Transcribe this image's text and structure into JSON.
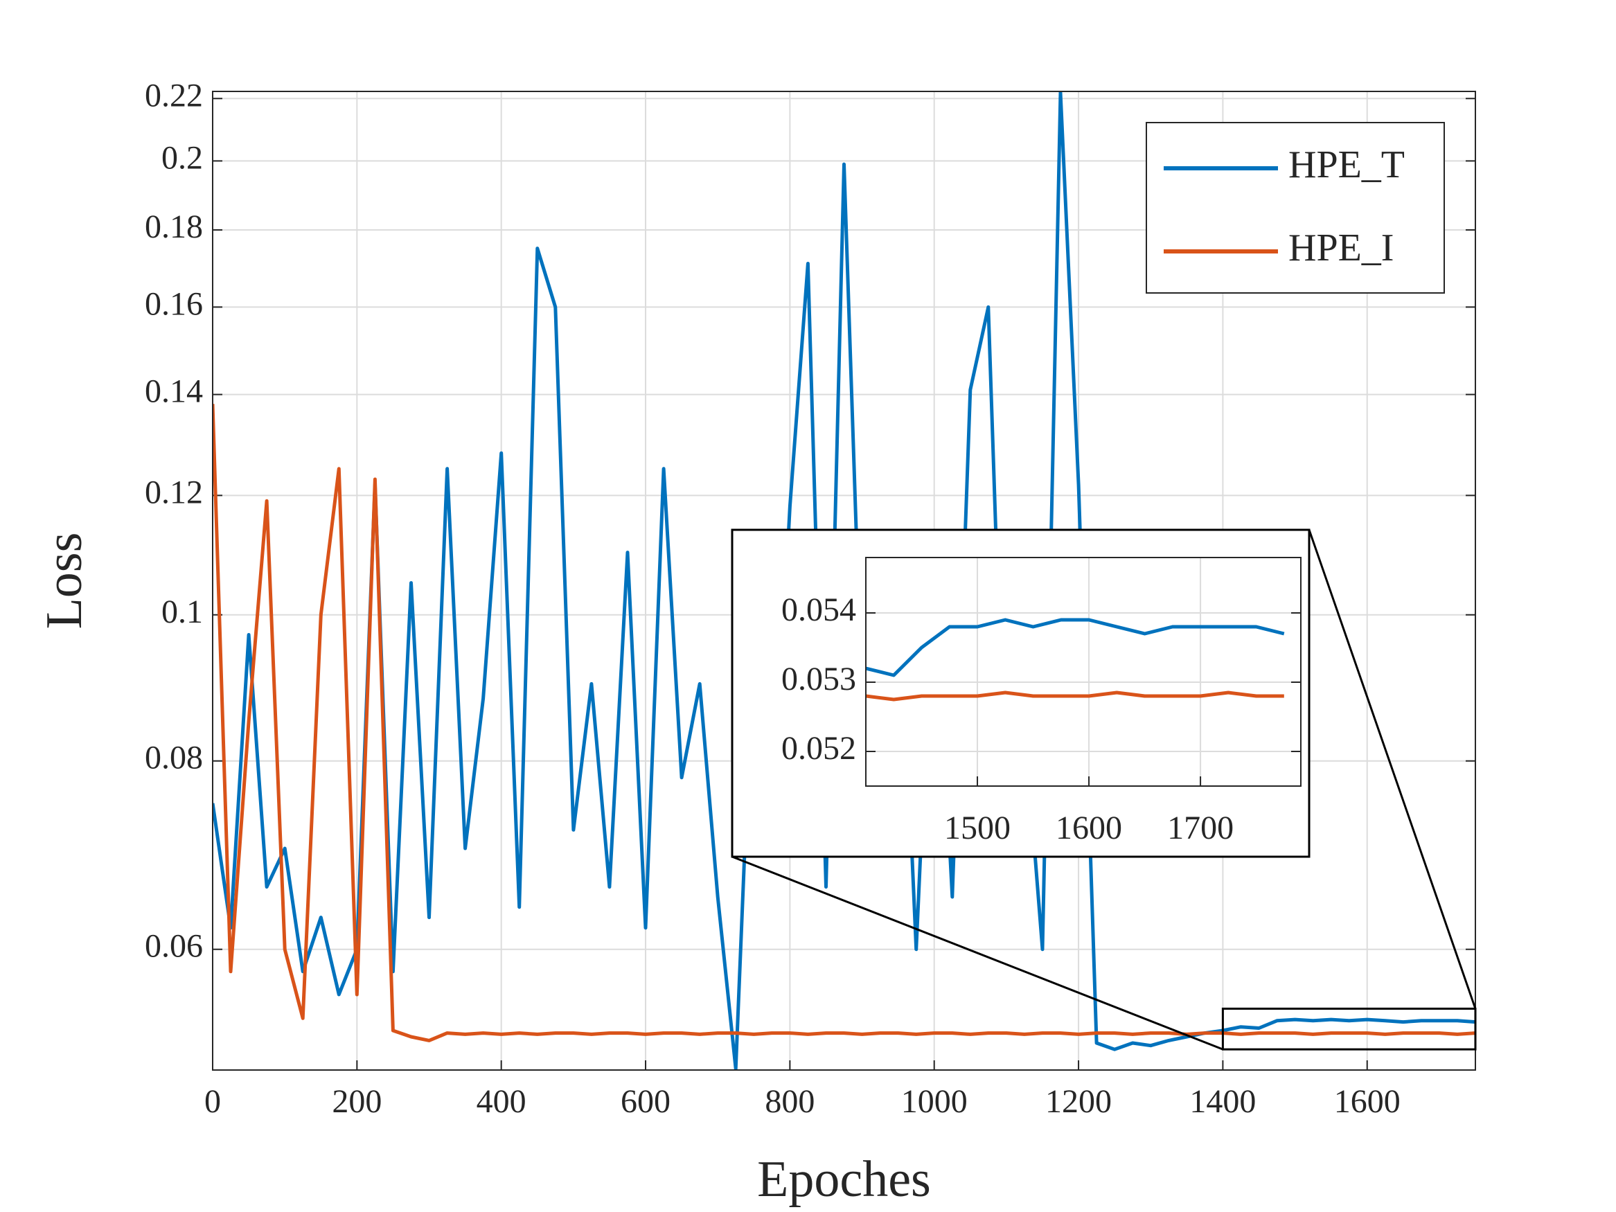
{
  "chart_data": [
    {
      "type": "line",
      "xlabel": "Epoches",
      "ylabel": "Loss",
      "yscale": "log",
      "grid": true,
      "legend": "upper right",
      "xlim": [
        0,
        1750
      ],
      "ylim": [
        0.0499,
        0.2224
      ],
      "xticks": [
        0,
        200,
        400,
        600,
        800,
        1000,
        1200,
        1400,
        1600
      ],
      "yticks": [
        0.06,
        0.08,
        0.1,
        0.12,
        0.14,
        0.16,
        0.18,
        0.2,
        0.22
      ],
      "x": [
        0,
        25,
        50,
        75,
        100,
        125,
        150,
        175,
        200,
        225,
        250,
        275,
        300,
        325,
        350,
        375,
        400,
        425,
        450,
        475,
        500,
        525,
        550,
        575,
        600,
        625,
        650,
        675,
        700,
        725,
        750,
        775,
        800,
        825,
        850,
        875,
        900,
        925,
        950,
        975,
        1000,
        1025,
        1050,
        1075,
        1100,
        1125,
        1150,
        1175,
        1200,
        1225,
        1250,
        1275,
        1300,
        1325,
        1350,
        1375,
        1400,
        1425,
        1450,
        1475,
        1500,
        1525,
        1550,
        1575,
        1600,
        1625,
        1650,
        1675,
        1700,
        1725,
        1750
      ],
      "series": [
        {
          "name": "HPE_T",
          "color": "#0072bd",
          "values": [
            0.075,
            0.062,
            0.097,
            0.066,
            0.07,
            0.058,
            0.063,
            0.056,
            0.06,
            0.122,
            0.058,
            0.105,
            0.063,
            0.125,
            0.07,
            0.088,
            0.128,
            0.064,
            0.175,
            0.16,
            0.072,
            0.09,
            0.066,
            0.11,
            0.062,
            0.125,
            0.078,
            0.09,
            0.065,
            0.05,
            0.098,
            0.07,
            0.118,
            0.171,
            0.066,
            0.199,
            0.087,
            0.075,
            0.112,
            0.06,
            0.11,
            0.065,
            0.141,
            0.16,
            0.07,
            0.085,
            0.06,
            0.222,
            0.122,
            0.052,
            0.0515,
            0.052,
            0.0518,
            0.0522,
            0.0525,
            0.0528,
            0.053,
            0.0533,
            0.0532,
            0.0538,
            0.0539,
            0.0538,
            0.0539,
            0.0538,
            0.0539,
            0.0538,
            0.0537,
            0.0538,
            0.0538,
            0.0538,
            0.0537
          ]
        },
        {
          "name": "HPE_I",
          "color": "#d95319",
          "values": [
            0.138,
            0.058,
            0.085,
            0.119,
            0.06,
            0.054,
            0.1,
            0.125,
            0.056,
            0.123,
            0.053,
            0.0525,
            0.0522,
            0.0528,
            0.0527,
            0.0528,
            0.0527,
            0.0528,
            0.0527,
            0.0528,
            0.0528,
            0.0527,
            0.0528,
            0.0528,
            0.0527,
            0.0528,
            0.0528,
            0.0527,
            0.0528,
            0.0528,
            0.0527,
            0.0528,
            0.0528,
            0.0527,
            0.0528,
            0.0528,
            0.0527,
            0.0528,
            0.0528,
            0.0527,
            0.0528,
            0.0528,
            0.0527,
            0.0528,
            0.0528,
            0.0527,
            0.0528,
            0.0528,
            0.0527,
            0.0528,
            0.0528,
            0.0527,
            0.0528,
            0.0528,
            0.0527,
            0.0528,
            0.0528,
            0.0527,
            0.0528,
            0.0528,
            0.0528,
            0.0527,
            0.0528,
            0.0528,
            0.0528,
            0.0527,
            0.0528,
            0.0528,
            0.0528,
            0.0527,
            0.0528
          ]
        }
      ]
    },
    {
      "type": "line",
      "grid": true,
      "xlim": [
        1400,
        1790
      ],
      "ylim": [
        0.0515,
        0.0548
      ],
      "xticks": [
        1500,
        1600,
        1700
      ],
      "yticks": [
        0.052,
        0.053,
        0.054
      ],
      "x": [
        1400,
        1425,
        1450,
        1475,
        1500,
        1525,
        1550,
        1575,
        1600,
        1625,
        1650,
        1675,
        1700,
        1725,
        1750,
        1775
      ],
      "series": [
        {
          "color": "#0072bd",
          "values": [
            0.0532,
            0.0531,
            0.0535,
            0.0538,
            0.0538,
            0.0539,
            0.0538,
            0.0539,
            0.0539,
            0.0538,
            0.0537,
            0.0538,
            0.0538,
            0.0538,
            0.0538,
            0.0537
          ]
        },
        {
          "color": "#d95319",
          "values": [
            0.0528,
            0.05275,
            0.0528,
            0.0528,
            0.0528,
            0.05285,
            0.0528,
            0.0528,
            0.0528,
            0.05285,
            0.0528,
            0.0528,
            0.0528,
            0.05285,
            0.0528,
            0.0528
          ]
        }
      ]
    }
  ]
}
